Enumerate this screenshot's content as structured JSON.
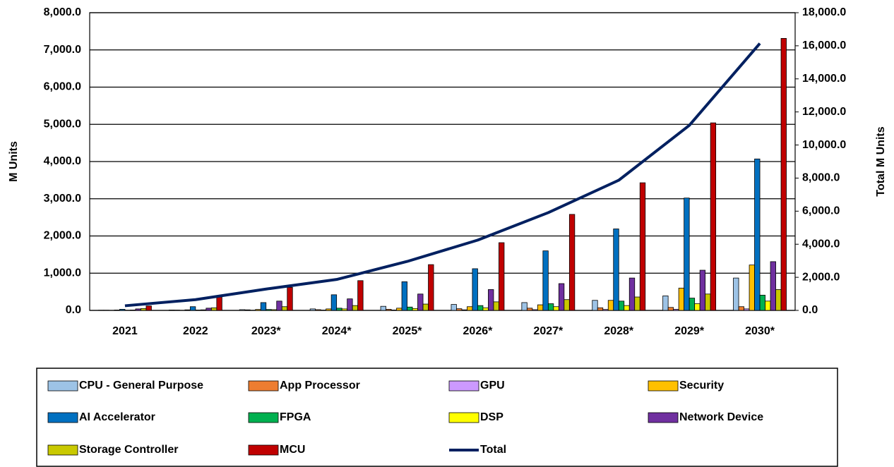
{
  "chart_data": {
    "type": "bar",
    "categories": [
      "2021",
      "2022",
      "2023*",
      "2024*",
      "2025*",
      "2026*",
      "2027*",
      "2028*",
      "2029*",
      "2030*"
    ],
    "ylabel": "M Units",
    "y2label": "Total M Units",
    "ylim": [
      0,
      8000
    ],
    "yticks": [
      {
        "value": 0,
        "label": "0.0"
      },
      {
        "value": 1000,
        "label": "1,000.0"
      },
      {
        "value": 2000,
        "label": "2,000.0"
      },
      {
        "value": 3000,
        "label": "3,000.0"
      },
      {
        "value": 4000,
        "label": "4,000.0"
      },
      {
        "value": 5000,
        "label": "5,000.0"
      },
      {
        "value": 6000,
        "label": "6,000.0"
      },
      {
        "value": 7000,
        "label": "7,000.0"
      },
      {
        "value": 8000,
        "label": "8,000.0"
      }
    ],
    "y2lim": [
      0,
      18000
    ],
    "y2ticks": [
      {
        "value": 0,
        "label": "0.0"
      },
      {
        "value": 2000,
        "label": "2,000.0"
      },
      {
        "value": 4000,
        "label": "4,000.0"
      },
      {
        "value": 6000,
        "label": "6,000.0"
      },
      {
        "value": 8000,
        "label": "8,000.0"
      },
      {
        "value": 10000,
        "label": "10,000.0"
      },
      {
        "value": 12000,
        "label": "12,000.0"
      },
      {
        "value": 14000,
        "label": "14,000.0"
      },
      {
        "value": 16000,
        "label": "16,000.0"
      },
      {
        "value": 18000,
        "label": "18,000.0"
      }
    ],
    "grid": true,
    "series": [
      {
        "name": "CPU - General Purpose",
        "color": "#9dc3e6",
        "values": [
          5,
          10,
          20,
          40,
          110,
          160,
          210,
          270,
          390,
          870
        ]
      },
      {
        "name": "App Processor",
        "color": "#ed7d31",
        "values": [
          5,
          8,
          15,
          20,
          30,
          45,
          60,
          70,
          80,
          100
        ]
      },
      {
        "name": "GPU",
        "color": "#cc99ff",
        "values": [
          2,
          3,
          5,
          8,
          10,
          15,
          20,
          25,
          30,
          40
        ]
      },
      {
        "name": "Security",
        "color": "#ffc000",
        "values": [
          10,
          15,
          25,
          40,
          60,
          100,
          150,
          270,
          600,
          1220
        ]
      },
      {
        "name": "AI Accelerator",
        "color": "#0070c0",
        "values": [
          30,
          100,
          210,
          420,
          770,
          1120,
          1600,
          2190,
          3020,
          4070
        ]
      },
      {
        "name": "FPGA",
        "color": "#00b050",
        "values": [
          5,
          10,
          25,
          60,
          90,
          130,
          180,
          250,
          330,
          410
        ]
      },
      {
        "name": "DSP",
        "color": "#ffff00",
        "values": [
          10,
          15,
          20,
          40,
          50,
          70,
          100,
          130,
          180,
          250
        ]
      },
      {
        "name": "Network Device",
        "color": "#7030a0",
        "values": [
          40,
          60,
          250,
          310,
          440,
          560,
          720,
          870,
          1080,
          1310
        ]
      },
      {
        "name": "Storage Controller",
        "color": "#c9c900",
        "values": [
          50,
          70,
          100,
          130,
          170,
          230,
          290,
          360,
          440,
          560
        ]
      },
      {
        "name": "MCU",
        "color": "#c00000",
        "values": [
          120,
          360,
          620,
          800,
          1230,
          1820,
          2580,
          3430,
          5040,
          7310
        ]
      },
      {
        "name": "Total",
        "color": "#002060",
        "axis": "y2",
        "type": "line",
        "values": [
          280,
          650,
          1290,
          1870,
          2960,
          4250,
          5910,
          7870,
          11190,
          16140
        ]
      }
    ]
  }
}
